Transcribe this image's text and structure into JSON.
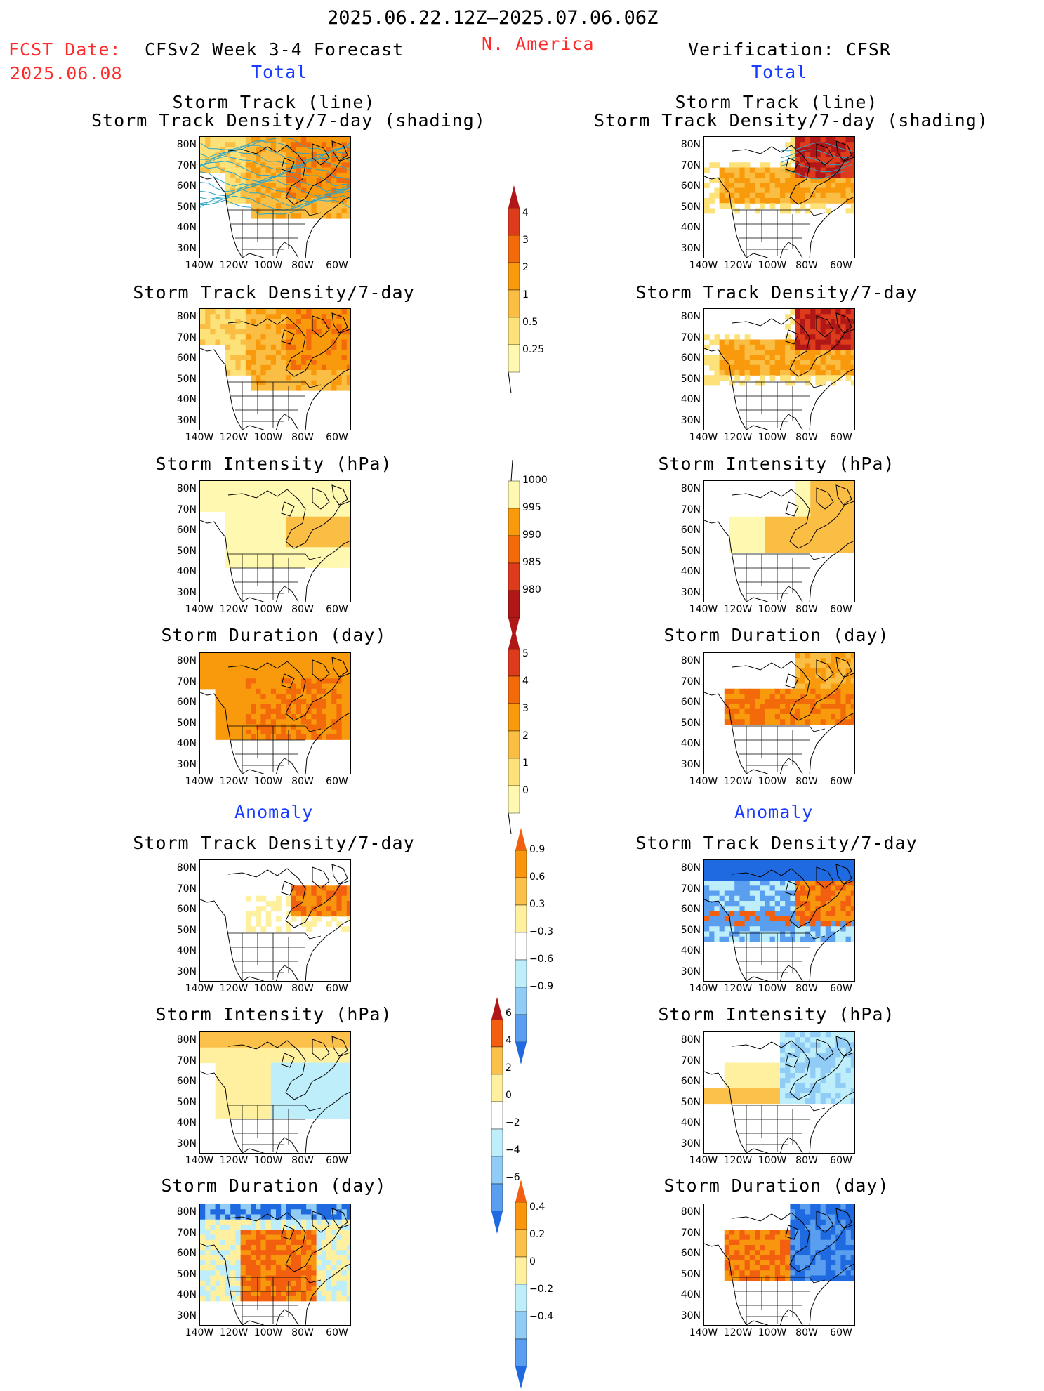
{
  "header": {
    "period": "2025.06.22.12Z–2025.07.06.06Z",
    "fcst_label": "FCST Date:",
    "fcst_date": "2025.06.08",
    "model": "CFSv2 Week 3-4 Forecast",
    "region": "N. America",
    "verification": "Verification: CFSR",
    "total_left": "Total",
    "total_right": "Total",
    "anomaly_left": "Anomaly",
    "anomaly_right": "Anomaly"
  },
  "panel_titles": {
    "track_line": "Storm Track (line)",
    "track_shading": "Storm Track Density/7-day (shading)",
    "density": "Storm Track Density/7-day",
    "intensity": "Storm Intensity (hPa)",
    "duration": "Storm Duration (day)"
  },
  "axes": {
    "lat_labels": [
      "80N",
      "70N",
      "60N",
      "50N",
      "40N",
      "30N"
    ],
    "lon_labels": [
      "140W",
      "120W",
      "100W",
      "80W",
      "60W"
    ]
  },
  "colors": {
    "cb_warm": [
      "#fff8b0",
      "#fde27a",
      "#fbbe45",
      "#f89a0c",
      "#f26a0a",
      "#de3a1c",
      "#b01818"
    ],
    "cb_warm_anom": [
      "#fff0a0",
      "#fbc14a",
      "#f8960e",
      "#f2600f"
    ],
    "cb_cool_anom": [
      "#bdeefa",
      "#90ccf5",
      "#5a9ef0",
      "#1f6ae0"
    ]
  },
  "chart_data": [
    {
      "type": "heatmap",
      "group": "total",
      "title": "Storm Track Density/7-day (shading)",
      "colorbar_ticks": [
        "4",
        "3",
        "2",
        "1",
        "0.5",
        "0.25"
      ],
      "maps": [
        "CFSv2 forecast",
        "CFSR verification"
      ]
    },
    {
      "type": "heatmap",
      "group": "total",
      "title": "Storm Intensity (hPa)",
      "colorbar_ticks": [
        "1000",
        "995",
        "990",
        "985",
        "980"
      ]
    },
    {
      "type": "heatmap",
      "group": "total",
      "title": "Storm Duration (day)",
      "colorbar_ticks": [
        "5",
        "4",
        "3",
        "2",
        "1",
        "0"
      ]
    },
    {
      "type": "heatmap",
      "group": "anomaly",
      "title": "Storm Track Density/7-day",
      "colorbar_ticks": [
        "0.9",
        "0.6",
        "0.3",
        "−0.3",
        "−0.6",
        "−0.9"
      ]
    },
    {
      "type": "heatmap",
      "group": "anomaly",
      "title": "Storm Intensity (hPa)",
      "colorbar_ticks": [
        "6",
        "4",
        "2",
        "0",
        "−2",
        "−4",
        "−6"
      ]
    },
    {
      "type": "heatmap",
      "group": "anomaly",
      "title": "Storm Duration (day)",
      "colorbar_ticks": [
        "0.4",
        "0.2",
        "0",
        "−0.2",
        "−0.4"
      ]
    }
  ]
}
